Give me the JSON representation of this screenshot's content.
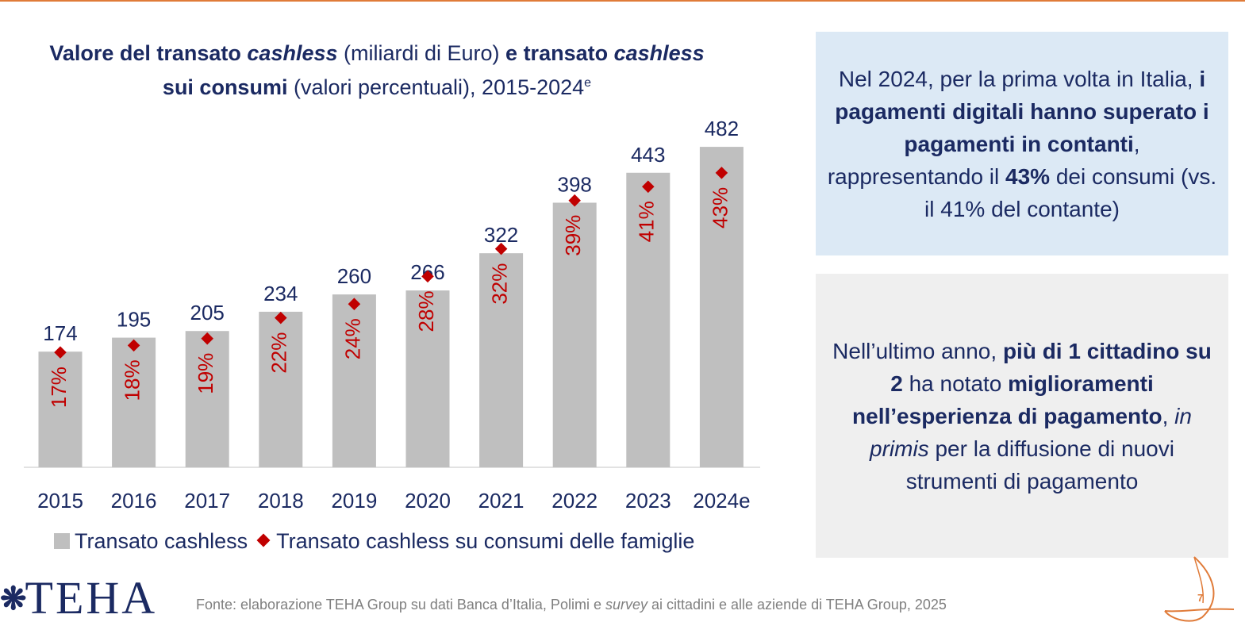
{
  "title": {
    "p1": "Valore del transato ",
    "p2": "cashless",
    "p3": " (miliardi di Euro) ",
    "p4": "e transato ",
    "p5": "cashless",
    "p6": "sui consumi",
    "p7": " (valori percentuali), 2015-2024",
    "p8": "e"
  },
  "chart_data": {
    "type": "bar",
    "categories": [
      "2015",
      "2016",
      "2017",
      "2018",
      "2019",
      "2020",
      "2021",
      "2022",
      "2023",
      "2024e"
    ],
    "series": [
      {
        "name": "Transato cashless",
        "values": [
          174,
          195,
          205,
          234,
          260,
          266,
          322,
          398,
          443,
          482
        ],
        "color": "#bfbfbf"
      },
      {
        "name": "Transato cashless su consumi delle famiglie",
        "values": [
          17,
          18,
          19,
          22,
          24,
          28,
          32,
          39,
          41,
          43
        ],
        "value_labels": [
          "17%",
          "18%",
          "19%",
          "22%",
          "24%",
          "28%",
          "32%",
          "39%",
          "41%",
          "43%"
        ],
        "color": "#c00000",
        "marker": "diamond"
      }
    ],
    "legend_position": "bottom",
    "grid": false
  },
  "legend": {
    "item1": "Transato cashless",
    "item2": "Transato cashless su consumi delle famiglie"
  },
  "box_blue": {
    "t1": "Nel 2024, per la prima volta in Italia, ",
    "t2": "i pagamenti digitali hanno superato i pagamenti in contanti",
    "t3": ", rappresentando il ",
    "t4": "43%",
    "t5": " dei consumi (vs. il 41% del contante)"
  },
  "box_gray": {
    "t1": "Nell’ultimo anno, ",
    "t2": "più di 1 cittadino su 2",
    "t3": " ha notato ",
    "t4": "miglioramenti nell’esperienza di pagamento",
    "t5": ", ",
    "t6": "in primis",
    "t7": " per la diffusione di nuovi strumenti di pagamento"
  },
  "logo": {
    "mark": "❋",
    "text": "TEHA"
  },
  "source": {
    "s1": "Fonte: elaborazione TEHA Group su dati Banca d’Italia, Polimi e ",
    "s2": "survey",
    "s3": " ai cittadini e alle aziende di TEHA Group, 2025"
  },
  "page_number": "7",
  "colors": {
    "accent": "#e07b39",
    "navy": "#1b2a62",
    "bar": "#bfbfbf",
    "marker": "#c00000"
  }
}
